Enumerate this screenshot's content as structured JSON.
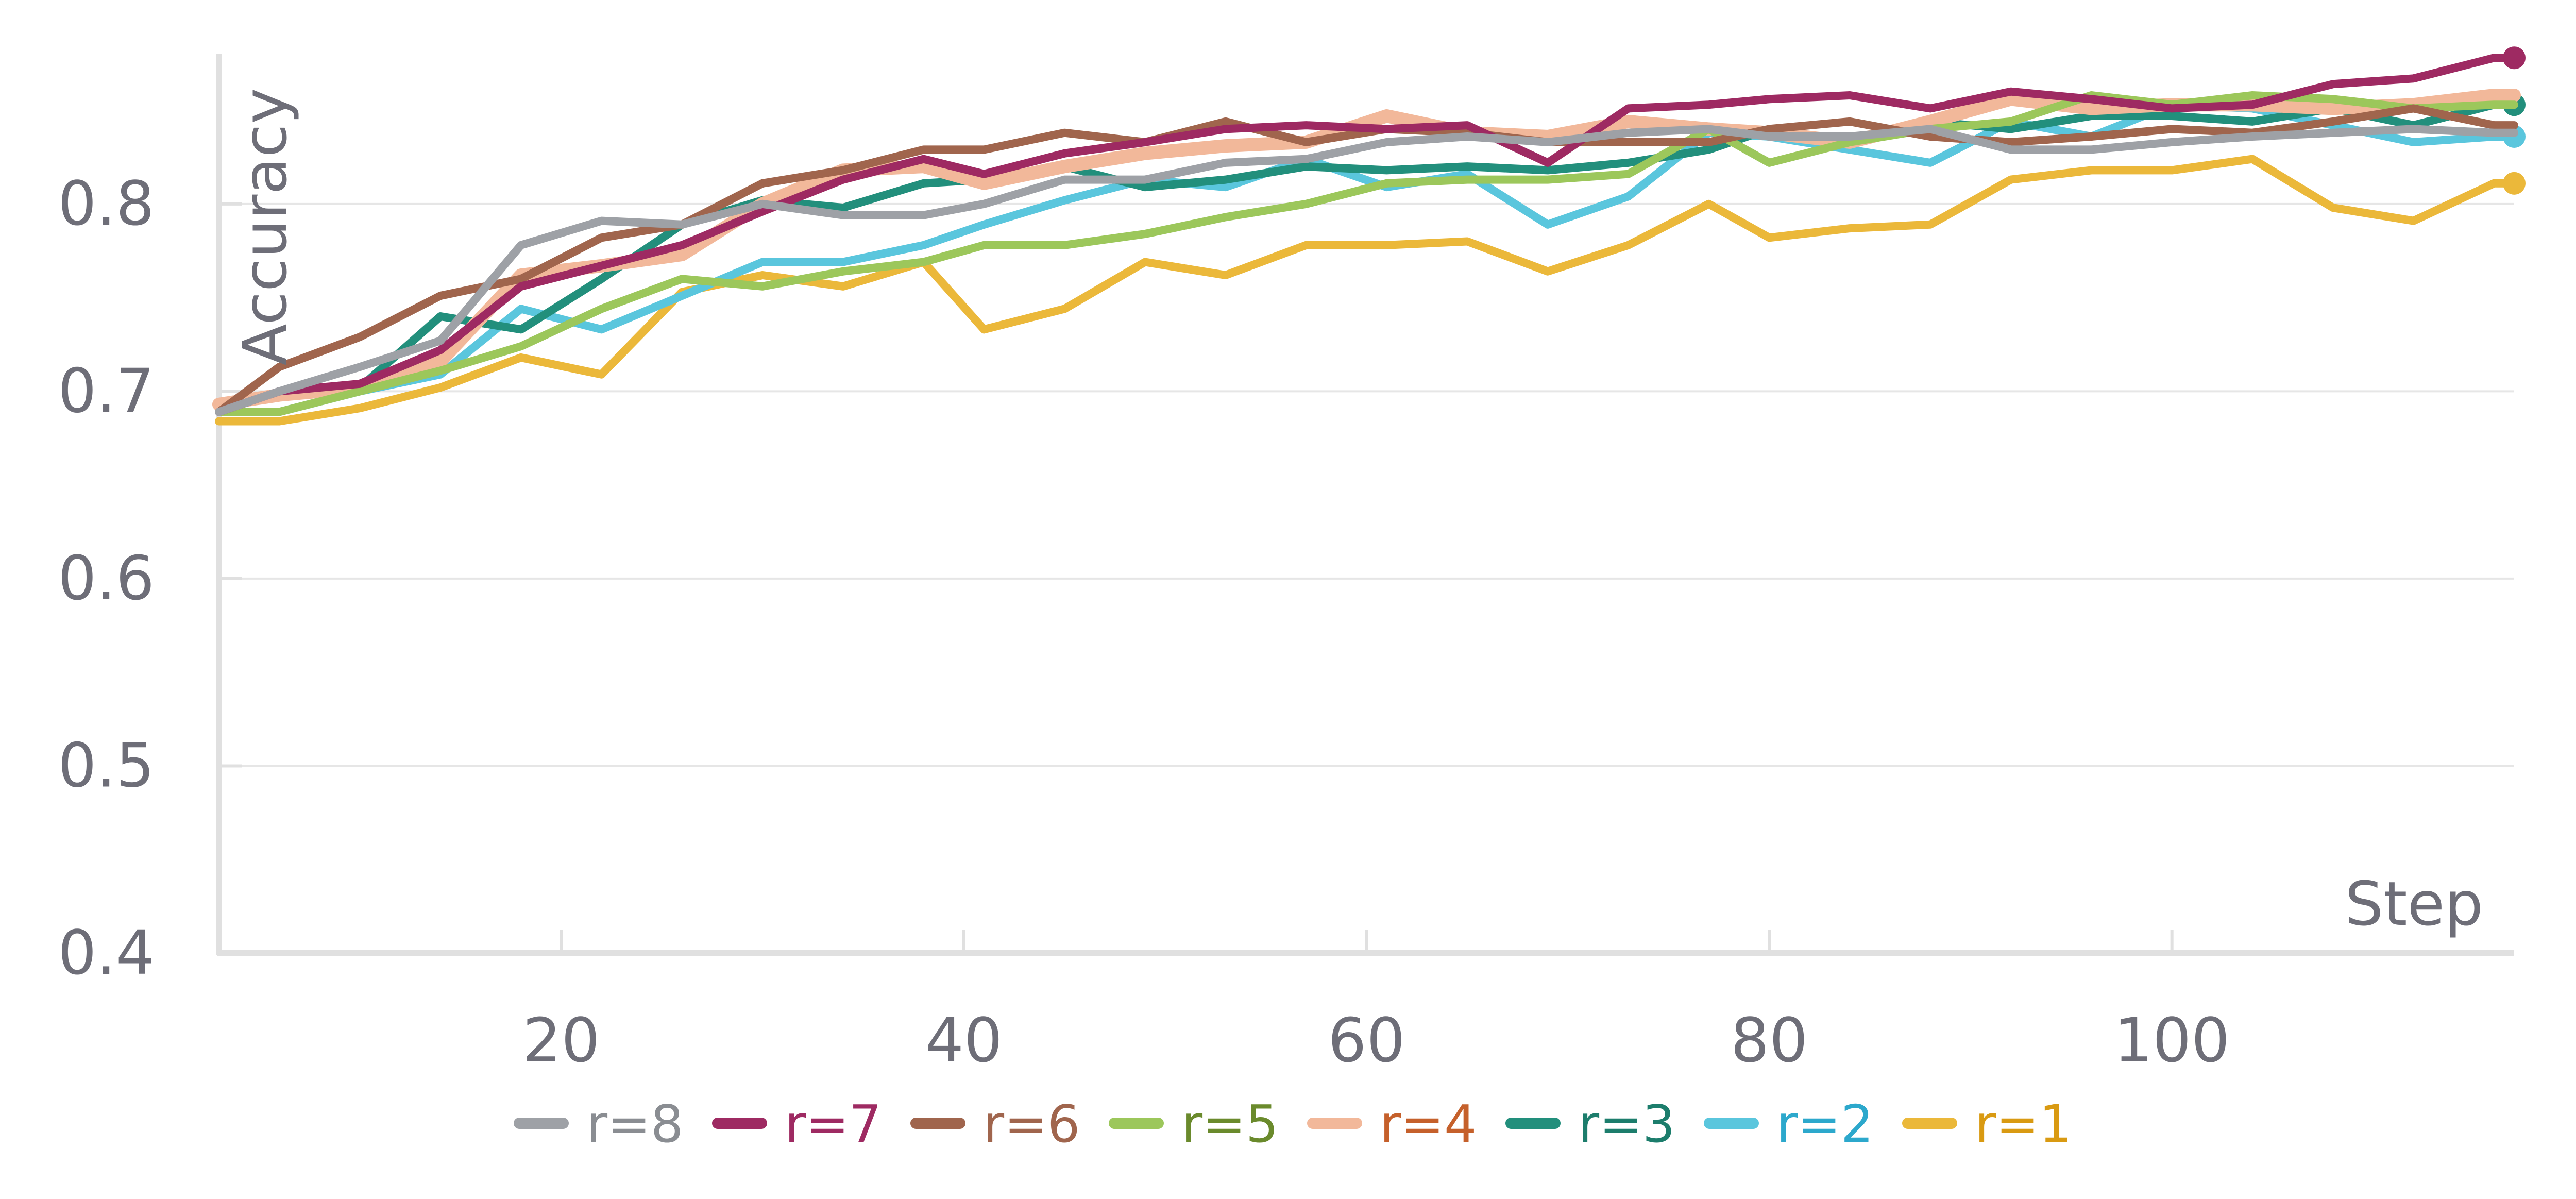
{
  "chart_data": {
    "type": "line",
    "title": "",
    "xlabel": "Step",
    "ylabel": "Accuracy",
    "xlim": [
      3,
      117
    ],
    "ylim": [
      0.4,
      0.88
    ],
    "xticks": [
      20,
      40,
      60,
      80,
      100
    ],
    "yticks": [
      0.4,
      0.5,
      0.6,
      0.7,
      0.8
    ],
    "xtick_labels": [
      "20",
      "40",
      "60",
      "80",
      "100"
    ],
    "ytick_labels": [
      "0.4",
      "0.5",
      "0.6",
      "0.7",
      "0.8"
    ],
    "grid": "horizontal",
    "legend_position": "bottom",
    "x": [
      3,
      6,
      10,
      14,
      18,
      22,
      26,
      30,
      34,
      38,
      41,
      45,
      49,
      53,
      57,
      61,
      65,
      69,
      73,
      77,
      80,
      84,
      88,
      92,
      96,
      100,
      104,
      108,
      112,
      116,
      117
    ],
    "series": [
      {
        "name": "r=8",
        "label": "r=8",
        "color": "#9ea1a6",
        "end_marker": false,
        "values": [
          0.689,
          0.7,
          0.713,
          0.727,
          0.778,
          0.791,
          0.789,
          0.8,
          0.794,
          0.794,
          0.8,
          0.813,
          0.813,
          0.822,
          0.824,
          0.833,
          0.836,
          0.833,
          0.838,
          0.84,
          0.836,
          0.836,
          0.84,
          0.829,
          0.829,
          0.833,
          0.836,
          0.838,
          0.84,
          0.838,
          0.838
        ]
      },
      {
        "name": "r=7",
        "label": "r=7",
        "color": "#9e2a62",
        "end_marker": true,
        "values": [
          0.689,
          0.7,
          0.704,
          0.722,
          0.756,
          0.767,
          0.778,
          0.796,
          0.813,
          0.824,
          0.816,
          0.827,
          0.833,
          0.84,
          0.842,
          0.84,
          0.842,
          0.822,
          0.851,
          0.853,
          0.856,
          0.858,
          0.851,
          0.86,
          0.856,
          0.851,
          0.853,
          0.864,
          0.867,
          0.878,
          0.878
        ]
      },
      {
        "name": "r=6",
        "label": "r=6",
        "color": "#a0654d",
        "end_marker": false,
        "values": [
          0.689,
          0.713,
          0.729,
          0.751,
          0.76,
          0.782,
          0.789,
          0.811,
          0.818,
          0.829,
          0.829,
          0.838,
          0.833,
          0.844,
          0.833,
          0.84,
          0.838,
          0.833,
          0.833,
          0.833,
          0.84,
          0.844,
          0.836,
          0.833,
          0.836,
          0.84,
          0.838,
          0.844,
          0.851,
          0.842,
          0.842
        ]
      },
      {
        "name": "r=5",
        "label": "r=5",
        "color": "#9cc75b",
        "end_marker": false,
        "values": [
          0.689,
          0.689,
          0.7,
          0.711,
          0.724,
          0.744,
          0.76,
          0.756,
          0.764,
          0.769,
          0.778,
          0.778,
          0.784,
          0.793,
          0.8,
          0.811,
          0.813,
          0.813,
          0.816,
          0.84,
          0.822,
          0.833,
          0.84,
          0.844,
          0.858,
          0.853,
          0.858,
          0.856,
          0.851,
          0.853,
          0.853
        ]
      },
      {
        "name": "r=4",
        "label": "r=4",
        "color": "#f2b89a",
        "end_marker": false,
        "values": [
          0.693,
          0.698,
          0.702,
          0.716,
          0.762,
          0.767,
          0.773,
          0.8,
          0.818,
          0.82,
          0.811,
          0.82,
          0.827,
          0.831,
          0.833,
          0.847,
          0.838,
          0.836,
          0.844,
          0.84,
          0.838,
          0.833,
          0.844,
          0.856,
          0.851,
          0.853,
          0.853,
          0.851,
          0.853,
          0.858,
          0.858
        ]
      },
      {
        "name": "r=3",
        "label": "r=3",
        "color": "#228f7c",
        "end_marker": true,
        "values": [
          0.689,
          0.7,
          0.702,
          0.74,
          0.733,
          0.76,
          0.789,
          0.802,
          0.798,
          0.811,
          0.813,
          0.82,
          0.809,
          0.813,
          0.82,
          0.818,
          0.82,
          0.818,
          0.822,
          0.829,
          0.84,
          0.833,
          0.844,
          0.84,
          0.847,
          0.847,
          0.844,
          0.851,
          0.842,
          0.853,
          0.853
        ]
      },
      {
        "name": "r=2",
        "label": "r=2",
        "color": "#5ac6dd",
        "end_marker": true,
        "values": [
          0.689,
          0.689,
          0.7,
          0.709,
          0.744,
          0.733,
          0.751,
          0.769,
          0.769,
          0.778,
          0.789,
          0.802,
          0.813,
          0.809,
          0.824,
          0.809,
          0.816,
          0.789,
          0.804,
          0.838,
          0.836,
          0.829,
          0.822,
          0.844,
          0.836,
          0.853,
          0.851,
          0.842,
          0.833,
          0.836,
          0.836
        ]
      },
      {
        "name": "r=1",
        "label": "r=1",
        "color": "#ebb83a",
        "end_marker": true,
        "values": [
          0.684,
          0.684,
          0.691,
          0.702,
          0.718,
          0.709,
          0.753,
          0.762,
          0.756,
          0.769,
          0.733,
          0.744,
          0.769,
          0.762,
          0.778,
          0.778,
          0.78,
          0.764,
          0.778,
          0.8,
          0.782,
          0.787,
          0.789,
          0.813,
          0.818,
          0.818,
          0.824,
          0.798,
          0.791,
          0.811,
          0.811
        ]
      }
    ],
    "legend_text_colors": {
      "r=8": "#8a8d92",
      "r=7": "#9e2a62",
      "r=6": "#a0654d",
      "r=5": "#6a8a2c",
      "r=4": "#c5602b",
      "r=3": "#1c7d6c",
      "r=2": "#2ca8cc",
      "r=1": "#d99a12"
    }
  }
}
